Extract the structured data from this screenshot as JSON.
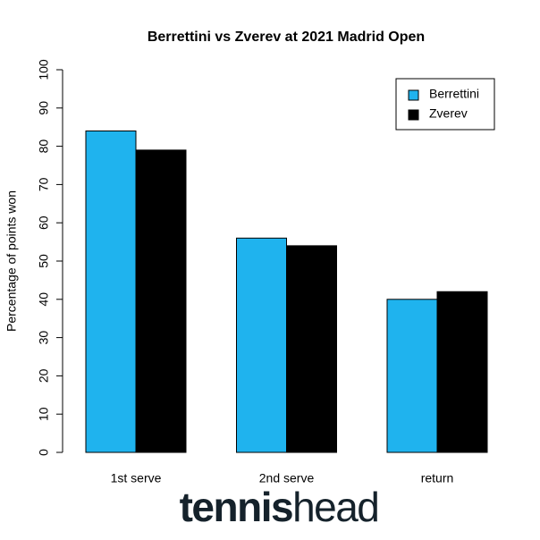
{
  "chart_data": {
    "type": "bar",
    "title": "Berrettini vs Zverev at 2021 Madrid Open",
    "ylabel": "Percentage of points won",
    "categories": [
      "1st serve",
      "2nd serve",
      "return"
    ],
    "series": [
      {
        "name": "Berrettini",
        "color": "#1fb3ee",
        "values": [
          84,
          56,
          40
        ]
      },
      {
        "name": "Zverev",
        "color": "#000000",
        "values": [
          79,
          54,
          42
        ]
      }
    ],
    "ylim": [
      0,
      100
    ],
    "yticks": [
      0,
      10,
      20,
      30,
      40,
      50,
      60,
      70,
      80,
      90,
      100
    ],
    "legend": "top-right"
  },
  "watermark": [
    "tennis",
    "head"
  ]
}
